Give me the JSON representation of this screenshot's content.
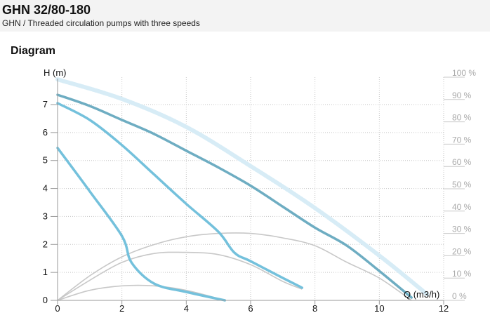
{
  "header": {
    "title": "GHN 32/80-180",
    "subtitle": "GHN / Threaded circulation pumps with three speeds"
  },
  "section": {
    "title": "Diagram"
  },
  "colors": {
    "header_bg": "#f3f3f3",
    "pump_curve": "#74c1dc",
    "pump_curve_dark": "#6eadc2",
    "efficiency_curve": "#c8c8c8",
    "grid_dotted": "#c6c6c6",
    "reference_curve": "#d7ecf6"
  },
  "chart_data": {
    "type": "line",
    "xlabel": "Q (m3/h)",
    "ylabel": "H (m)",
    "secondary_ylabel": "",
    "xlim": [
      0,
      12
    ],
    "ylim": [
      0,
      8
    ],
    "secondary_ylim": [
      0,
      100
    ],
    "x_ticks": [
      "0",
      "2",
      "4",
      "6",
      "8",
      "10",
      "12"
    ],
    "x_tick_values": [
      0,
      2,
      4,
      6,
      8,
      10,
      12
    ],
    "y_ticks": [
      "0",
      "1",
      "2",
      "3",
      "4",
      "5",
      "6",
      "7"
    ],
    "y_tick_values": [
      0,
      1,
      2,
      3,
      4,
      5,
      6,
      7
    ],
    "secondary_ticks": [
      "0 %",
      "10 %",
      "20 %",
      "30 %",
      "40 %",
      "50 %",
      "60 %",
      "70 %",
      "80 %",
      "90 %",
      "100 %"
    ],
    "secondary_tick_values": [
      0,
      10,
      20,
      30,
      40,
      50,
      60,
      70,
      80,
      90,
      100
    ],
    "grid": true,
    "series": [
      {
        "role": "head",
        "x": [
          0,
          1,
          2,
          3,
          4,
          5,
          6,
          7,
          8,
          9,
          10,
          11
        ],
        "y": [
          7.35,
          6.95,
          6.45,
          5.95,
          5.35,
          4.75,
          4.1,
          3.35,
          2.6,
          1.95,
          1.05,
          0.1
        ]
      },
      {
        "role": "head",
        "x": [
          0,
          1,
          2,
          3,
          4,
          5,
          5.5,
          6,
          7,
          7.6
        ],
        "y": [
          7.05,
          6.45,
          5.55,
          4.5,
          3.45,
          2.45,
          1.7,
          1.4,
          0.8,
          0.45
        ]
      },
      {
        "role": "head",
        "x": [
          0,
          1,
          2,
          2.3,
          3,
          4,
          5.2
        ],
        "y": [
          5.45,
          3.9,
          2.3,
          1.35,
          0.6,
          0.3,
          0
        ]
      },
      {
        "role": "efficiency",
        "x": [
          0,
          1,
          2,
          3,
          4,
          5,
          6,
          7,
          8,
          9,
          10,
          11
        ],
        "y": [
          0,
          11,
          19.5,
          25,
          28.5,
          30,
          30,
          28,
          24.5,
          17,
          10,
          0
        ]
      },
      {
        "role": "efficiency",
        "x": [
          0,
          1,
          2,
          3,
          4,
          5,
          6,
          7,
          7.6
        ],
        "y": [
          0,
          9,
          17,
          21,
          21.5,
          20.5,
          16,
          8.5,
          5
        ]
      },
      {
        "role": "efficiency",
        "x": [
          0,
          1,
          2,
          3,
          4,
          5.2
        ],
        "y": [
          0,
          4.5,
          6.5,
          6.5,
          4.5,
          0
        ]
      },
      {
        "role": "reference",
        "x": [
          0,
          2,
          4,
          6,
          8,
          10,
          11.5
        ],
        "y": [
          7.9,
          7.2,
          6.2,
          4.8,
          3.3,
          1.6,
          0.2
        ]
      }
    ]
  }
}
